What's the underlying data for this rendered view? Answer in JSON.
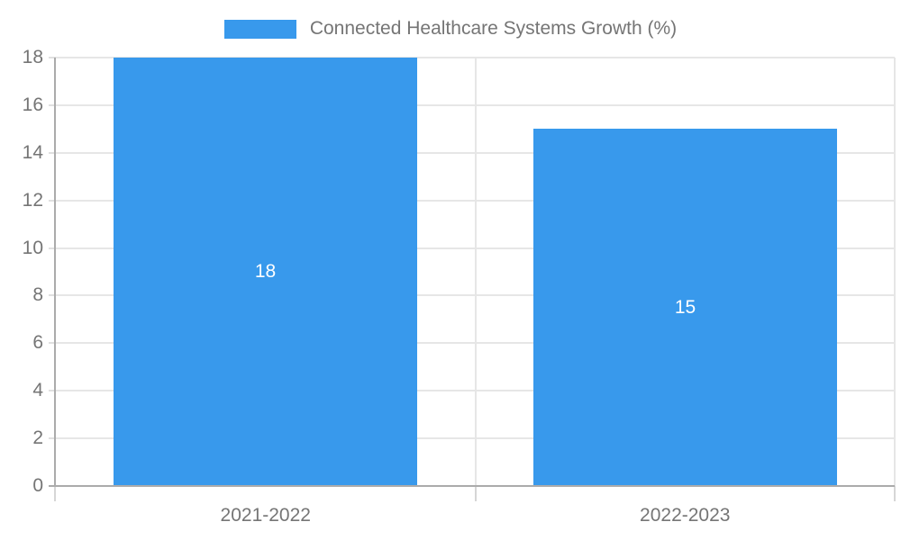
{
  "chart_data": {
    "type": "bar",
    "title": "",
    "legend": {
      "label": "Connected Healthcare Systems Growth (%)",
      "position": "top"
    },
    "categories": [
      "2021-2022",
      "2022-2023"
    ],
    "values": [
      18,
      15
    ],
    "bar_value_labels": [
      "18",
      "15"
    ],
    "xlabel": "",
    "ylabel": "",
    "ylim": [
      0,
      18
    ],
    "yticks": [
      0,
      2,
      4,
      6,
      8,
      10,
      12,
      14,
      16,
      18
    ],
    "grid": true,
    "colors": {
      "bar": "#3899EC",
      "bar_value_text": "#FFFFFF",
      "axis_text": "#757575",
      "gridline": "#E6E6E6",
      "axis_line": "#ABABAB"
    }
  }
}
